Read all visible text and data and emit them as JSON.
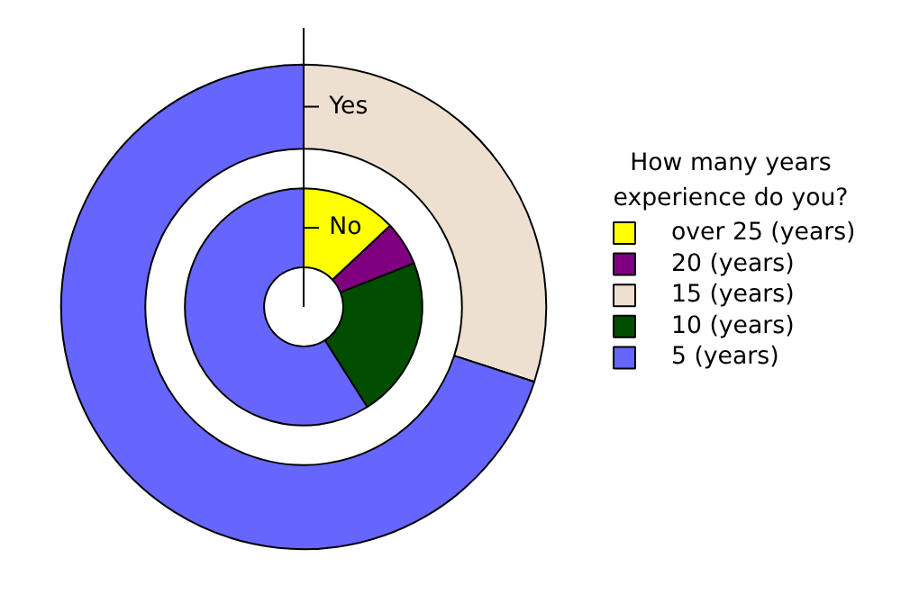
{
  "chart_data": {
    "type": "donut",
    "legend_title": "How many years experience do you?",
    "categories": [
      "over 25 (years)",
      "20 (years)",
      "15 (years)",
      "10 (years)",
      "5 (years)"
    ],
    "colors": [
      "#ffff00",
      "#800080",
      "#ede0d0",
      "#004d00",
      "#6666ff"
    ],
    "series": [
      {
        "name": "Yes",
        "values": [
          null,
          null,
          30,
          null,
          70
        ]
      },
      {
        "name": "No",
        "values": [
          13,
          6,
          null,
          22,
          59
        ]
      }
    ],
    "legend": "right"
  }
}
